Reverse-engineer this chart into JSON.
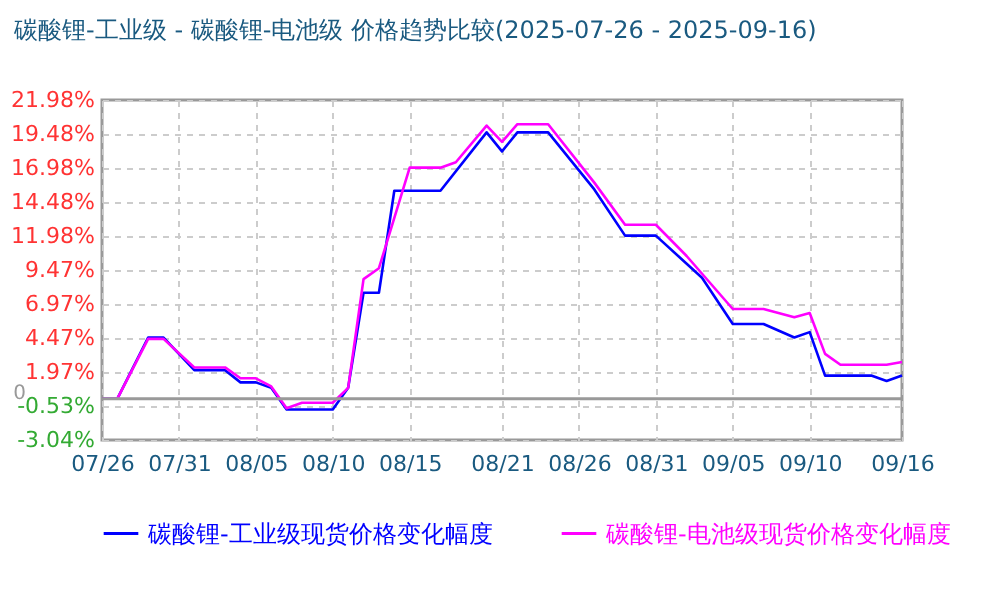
{
  "chart_data": {
    "type": "line",
    "title": "碳酸锂-工业级 - 碳酸锂-电池级 价格趋势比较(2025-07-26 - 2025-09-16)",
    "xlim": [
      "2025-07-26",
      "2025-09-16"
    ],
    "xticks": [
      {
        "value": "2025-07-26",
        "label": "07/26"
      },
      {
        "value": "2025-07-31",
        "label": "07/31"
      },
      {
        "value": "2025-08-05",
        "label": "08/05"
      },
      {
        "value": "2025-08-10",
        "label": "08/10"
      },
      {
        "value": "2025-08-15",
        "label": "08/15"
      },
      {
        "value": "2025-08-21",
        "label": "08/21"
      },
      {
        "value": "2025-08-26",
        "label": "08/26"
      },
      {
        "value": "2025-08-31",
        "label": "08/31"
      },
      {
        "value": "2025-09-05",
        "label": "09/05"
      },
      {
        "value": "2025-09-10",
        "label": "09/10"
      },
      {
        "value": "2025-09-16",
        "label": "09/16"
      }
    ],
    "ylim": [
      -3.04,
      21.98
    ],
    "yticks": [
      {
        "value": -3.04,
        "label": "-3.04%"
      },
      {
        "value": -0.53,
        "label": "-0.53%"
      },
      {
        "value": 1.97,
        "label": "1.97%"
      },
      {
        "value": 4.47,
        "label": "4.47%"
      },
      {
        "value": 6.97,
        "label": "6.97%"
      },
      {
        "value": 9.47,
        "label": "9.47%"
      },
      {
        "value": 11.98,
        "label": "11.98%"
      },
      {
        "value": 14.48,
        "label": "14.48%"
      },
      {
        "value": 16.98,
        "label": "16.98%"
      },
      {
        "value": 19.48,
        "label": "19.48%"
      },
      {
        "value": 21.98,
        "label": "21.98%"
      }
    ],
    "ref_lines": [
      {
        "axis": "y",
        "value": 0,
        "label": "0",
        "color": "#999999"
      }
    ],
    "grid": true,
    "legend": "bottom",
    "marker": "none",
    "line_style": "solid",
    "series": [
      {
        "name": "碳酸锂-工业级现货价格变化幅度",
        "color": "#0000ff",
        "x": [
          "2025-07-26",
          "2025-07-27",
          "2025-07-29",
          "2025-07-30",
          "2025-08-01",
          "2025-08-03",
          "2025-08-04",
          "2025-08-05",
          "2025-08-06",
          "2025-08-07",
          "2025-08-10",
          "2025-08-11",
          "2025-08-12",
          "2025-08-13",
          "2025-08-14",
          "2025-08-17",
          "2025-08-20",
          "2025-08-21",
          "2025-08-22",
          "2025-08-24",
          "2025-08-27",
          "2025-08-29",
          "2025-08-31",
          "2025-09-03",
          "2025-09-05",
          "2025-09-07",
          "2025-09-09",
          "2025-09-10",
          "2025-09-11",
          "2025-09-14",
          "2025-09-15",
          "2025-09-16"
        ],
        "values": [
          0,
          0,
          4.5,
          4.5,
          2.1,
          2.1,
          1.2,
          1.2,
          0.8,
          -0.8,
          -0.8,
          0.8,
          7.8,
          7.8,
          15.3,
          15.3,
          19.6,
          18.2,
          19.6,
          19.6,
          15.4,
          12.0,
          12.0,
          8.9,
          5.5,
          5.5,
          4.5,
          4.9,
          1.7,
          1.7,
          1.3,
          1.7
        ]
      },
      {
        "name": "碳酸锂-电池级现货价格变化幅度",
        "color": "#ff00ff",
        "x": [
          "2025-07-26",
          "2025-07-27",
          "2025-07-29",
          "2025-07-30",
          "2025-08-01",
          "2025-08-03",
          "2025-08-04",
          "2025-08-05",
          "2025-08-06",
          "2025-08-07",
          "2025-08-08",
          "2025-08-10",
          "2025-08-11",
          "2025-08-12",
          "2025-08-13",
          "2025-08-15",
          "2025-08-17",
          "2025-08-18",
          "2025-08-20",
          "2025-08-21",
          "2025-08-22",
          "2025-08-24",
          "2025-08-27",
          "2025-08-29",
          "2025-08-31",
          "2025-09-02",
          "2025-09-05",
          "2025-09-07",
          "2025-09-09",
          "2025-09-10",
          "2025-09-11",
          "2025-09-12",
          "2025-09-15",
          "2025-09-16"
        ],
        "values": [
          0,
          0,
          4.4,
          4.4,
          2.3,
          2.3,
          1.5,
          1.5,
          0.9,
          -0.7,
          -0.3,
          -0.3,
          0.8,
          8.8,
          9.6,
          17.0,
          17.0,
          17.4,
          20.1,
          18.9,
          20.2,
          20.2,
          15.9,
          12.8,
          12.8,
          10.5,
          6.6,
          6.6,
          6.0,
          6.3,
          3.3,
          2.5,
          2.5,
          2.7
        ]
      }
    ]
  }
}
